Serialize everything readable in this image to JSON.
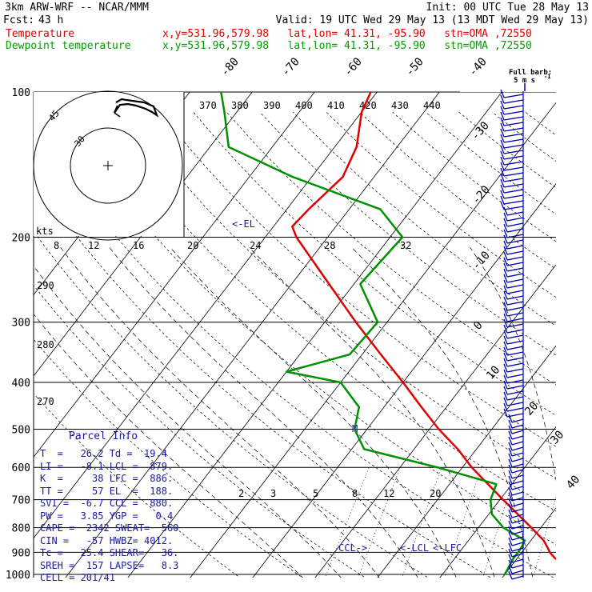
{
  "header": {
    "model": "3km ARW-WRF -- NCAR/MMM",
    "init": "Init: 00 UTC Tue 28 May 13",
    "fcst_label": "Fcst:",
    "fcst_value": "43 h",
    "valid": "Valid: 19 UTC Wed 29 May 13 (13 MDT Wed 29 May 13)",
    "temp_label": "Temperature",
    "dew_label": "Dewpoint temperature",
    "loc_info": "x,y=531.96,579.98   lat,lon= 41.31, -95.90   stn=OMA ,72550"
  },
  "parcel": {
    "title": "Parcel Info",
    "rows": [
      "T  =   26.2 Td =  19.4",
      "LI =   -8.1 LCL =  879.",
      "K  =     38 LFC =  886.",
      "TT =     57 EL  =  188.",
      "SVI =  -6.7 CCL =  880.",
      "PW =   3.85 YGP =   0.4",
      "CAPE =  2342 SWEAT=  560",
      "CIN =   -57 HWBZ= 4012.",
      "Tc =   25.4 SHEAR=   36.",
      "SREH =  157 LAPSE=   8.3",
      "CELL = 201/41"
    ]
  },
  "barb_legend": {
    "line1": "Full barb:",
    "line2": "5 m s",
    "unit_sup": "-1"
  },
  "hodograph": {
    "kts_label": "kts",
    "ring_labels": [
      "30",
      "45"
    ],
    "scale_labels": [
      "8",
      "12",
      "16",
      "20",
      "24",
      "28",
      "32"
    ]
  },
  "annotations": {
    "el": "<-EL",
    "ccl": "CCL->",
    "lcl": "<-LCL",
    "lfc": "<-LFC",
    "max_wind": "M"
  },
  "colors": {
    "temperature": "#e00000",
    "dewpoint": "#009000",
    "parcel": "#1a1aa0"
  },
  "chart_data": {
    "type": "line",
    "title": "",
    "xlabel": "",
    "ylabel": "",
    "y_axis": {
      "scale": "log-pressure",
      "unit": "hPa",
      "ticks": [
        100,
        200,
        300,
        400,
        500,
        600,
        700,
        800,
        900,
        1000
      ]
    },
    "isotherm_labels": [
      "-80",
      "-70",
      "-60",
      "-50",
      "-40",
      "-30",
      "-20",
      "-10",
      "0",
      "10",
      "20",
      "30",
      "40"
    ],
    "theta_labels_top": [
      "370",
      "380",
      "390",
      "400",
      "410",
      "420",
      "430",
      "440"
    ],
    "theta_labels_left": [
      "290",
      "280",
      "270"
    ],
    "mixing_ratio_labels": [
      "2",
      "3",
      "5",
      "8",
      "12",
      "20"
    ],
    "series": [
      {
        "name": "Temperature",
        "p": [
          1000,
          975,
          950,
          925,
          900,
          875,
          850,
          800,
          700,
          600,
          550,
          500,
          450,
          400,
          350,
          300,
          250,
          200,
          190,
          175,
          150,
          130,
          110,
          100
        ],
        "t": [
          34.5,
          31.0,
          28.0,
          26.0,
          24.5,
          23.3,
          22.0,
          18.5,
          10.5,
          1.5,
          -3.0,
          -8.5,
          -14.0,
          -20.0,
          -27.0,
          -35.0,
          -44.0,
          -55.0,
          -57.0,
          -56.5,
          -55.0,
          -56.5,
          -60.0,
          -61.0
        ]
      },
      {
        "name": "Dewpoint temperature",
        "p": [
          1000,
          950,
          925,
          900,
          875,
          850,
          800,
          750,
          700,
          650,
          600,
          550,
          500,
          450,
          400,
          380,
          350,
          300,
          250,
          200,
          175,
          150,
          130,
          110,
          100
        ],
        "t": [
          20.0,
          19.6,
          19.4,
          19.4,
          19.3,
          19.0,
          14.0,
          10.5,
          8.5,
          7.5,
          -4.0,
          -18.0,
          -22.0,
          -24.0,
          -30.0,
          -40.0,
          -32.0,
          -31.5,
          -39.0,
          -38.0,
          -45.0,
          -63.0,
          -77.0,
          -82.0,
          -85.0
        ]
      }
    ]
  }
}
